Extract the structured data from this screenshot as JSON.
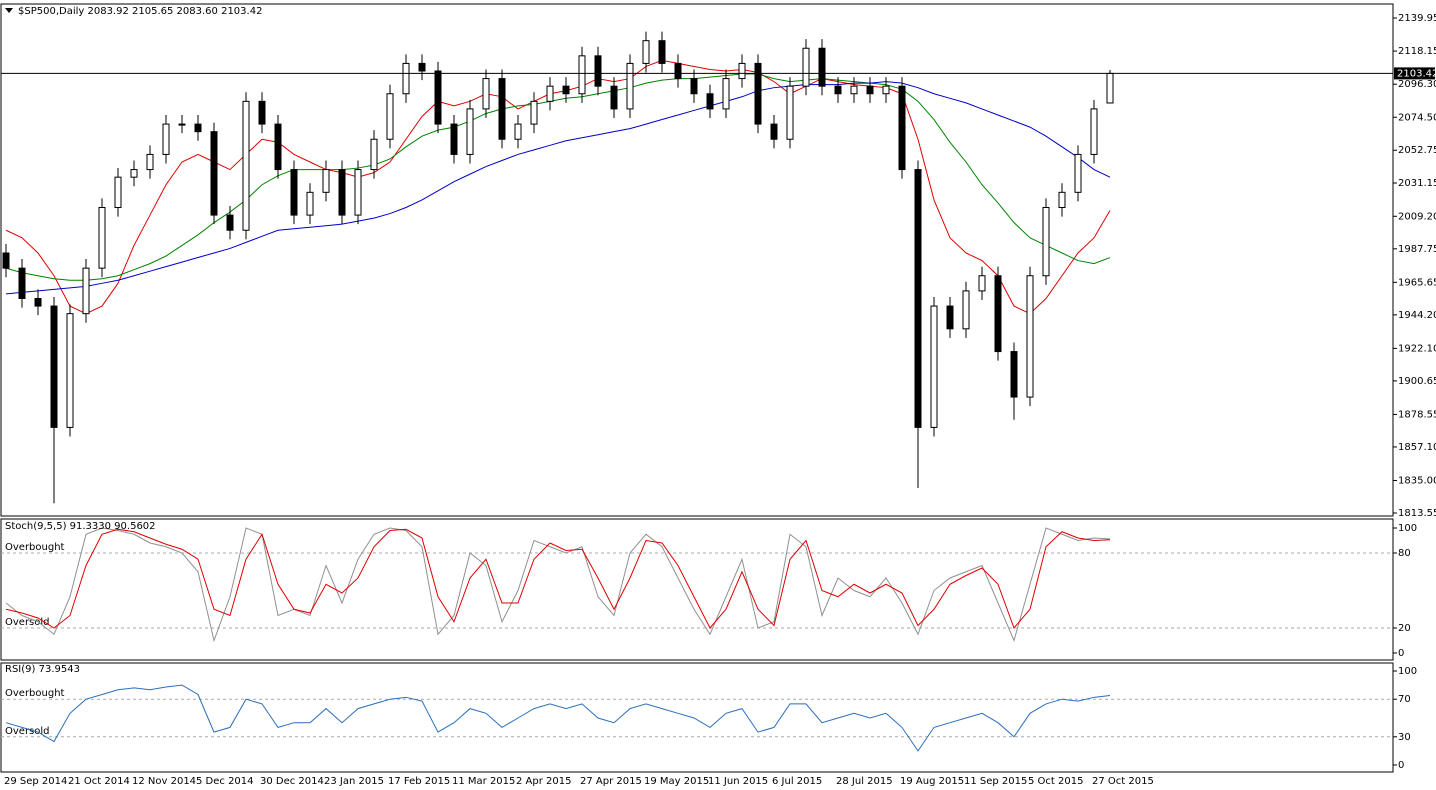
{
  "chart_data": {
    "type": "candlestick",
    "header": "$SP500,Daily  2083.92 2105.65 2083.60 2103.42",
    "categories": [
      "29 Sep 2014",
      null,
      null,
      null,
      "21 Oct 2014",
      null,
      null,
      null,
      "12 Nov 2014",
      null,
      null,
      null,
      "5 Dec 2014",
      null,
      null,
      null,
      "30 Dec 2014",
      null,
      null,
      null,
      "23 Jan 2015",
      null,
      null,
      null,
      "17 Feb 2015",
      null,
      null,
      null,
      "11 Mar 2015",
      null,
      null,
      null,
      "2 Apr 2015",
      null,
      null,
      null,
      "27 Apr 2015",
      null,
      null,
      null,
      "19 May 2015",
      null,
      null,
      null,
      "11 Jun 2015",
      null,
      null,
      null,
      "6 Jul 2015",
      null,
      null,
      null,
      "28 Jul 2015",
      null,
      null,
      null,
      "19 Aug 2015",
      null,
      null,
      null,
      "11 Sep 2015",
      null,
      null,
      null,
      "5 Oct 2015",
      null,
      null,
      null,
      "27 Oct 2015",
      null
    ],
    "open": [
      1985,
      1975,
      1955,
      1950,
      1870,
      1945,
      1975,
      2015,
      2035,
      2040,
      2050,
      2070,
      2070,
      2065,
      2010,
      2000,
      2085,
      2070,
      2040,
      2010,
      2025,
      2040,
      2010,
      2040,
      2060,
      2090,
      2110,
      2105,
      2070,
      2050,
      2080,
      2100,
      2060,
      2070,
      2085,
      2095,
      2090,
      2115,
      2095,
      2080,
      2110,
      2125,
      2110,
      2100,
      2090,
      2080,
      2100,
      2110,
      2070,
      2060,
      2095,
      2120,
      2095,
      2090,
      2095,
      2090,
      2095,
      2040,
      1870,
      1950,
      1935,
      1960,
      1970,
      1920,
      1890,
      1970,
      2015,
      2025,
      2050,
      2083.92
    ],
    "high": [
      1991,
      1981,
      1961,
      1956,
      1951,
      1981,
      2021,
      2041,
      2046,
      2056,
      2076,
      2076,
      2076,
      2071,
      2016,
      2091,
      2091,
      2076,
      2046,
      2031,
      2046,
      2046,
      2046,
      2066,
      2096,
      2116,
      2116,
      2111,
      2076,
      2086,
      2106,
      2106,
      2076,
      2091,
      2101,
      2101,
      2121,
      2121,
      2101,
      2116,
      2131,
      2131,
      2116,
      2106,
      2096,
      2106,
      2116,
      2116,
      2076,
      2101,
      2126,
      2126,
      2101,
      2101,
      2101,
      2101,
      2101,
      2046,
      1956,
      1956,
      1966,
      1976,
      1976,
      1926,
      1976,
      2021,
      2031,
      2056,
      2086,
      2105.65
    ],
    "low": [
      1969,
      1949,
      1944,
      1820,
      1864,
      1939,
      1969,
      2009,
      2029,
      2034,
      2044,
      2064,
      2059,
      2004,
      1994,
      1994,
      2064,
      2034,
      2004,
      2004,
      2019,
      2004,
      2004,
      2034,
      2054,
      2084,
      2099,
      2064,
      2044,
      2044,
      2074,
      2054,
      2054,
      2064,
      2079,
      2084,
      2084,
      2089,
      2074,
      2074,
      2104,
      2104,
      2094,
      2084,
      2074,
      2074,
      2094,
      2064,
      2054,
      2054,
      2089,
      2089,
      2084,
      2084,
      2084,
      2084,
      2034,
      1830,
      1864,
      1929,
      1929,
      1954,
      1914,
      1875,
      1884,
      1964,
      2009,
      2019,
      2044,
      2083.6
    ],
    "close": [
      1975,
      1955,
      1950,
      1870,
      1945,
      1975,
      2015,
      2035,
      2040,
      2050,
      2070,
      2070,
      2065,
      2010,
      2000,
      2085,
      2070,
      2040,
      2010,
      2025,
      2040,
      2010,
      2040,
      2060,
      2090,
      2110,
      2105,
      2070,
      2050,
      2080,
      2100,
      2060,
      2070,
      2085,
      2095,
      2090,
      2115,
      2095,
      2080,
      2110,
      2125,
      2110,
      2100,
      2090,
      2080,
      2100,
      2110,
      2070,
      2060,
      2095,
      2120,
      2095,
      2090,
      2095,
      2090,
      2095,
      2040,
      1870,
      1950,
      1935,
      1960,
      1970,
      1920,
      1890,
      1970,
      2015,
      2025,
      2050,
      2080,
      2103.42
    ],
    "last_price_label": "2103.42",
    "moving_averages": [
      {
        "color": "#e00000",
        "values": [
          2000,
          1995,
          1985,
          1970,
          1950,
          1945,
          1950,
          1965,
          1990,
          2010,
          2030,
          2045,
          2050,
          2045,
          2040,
          2050,
          2060,
          2058,
          2050,
          2045,
          2040,
          2038,
          2035,
          2038,
          2045,
          2060,
          2075,
          2085,
          2082,
          2085,
          2090,
          2088,
          2080,
          2085,
          2090,
          2092,
          2095,
          2100,
          2098,
          2100,
          2108,
          2112,
          2110,
          2108,
          2106,
          2105,
          2106,
          2104,
          2098,
          2090,
          2095,
          2100,
          2098,
          2096,
          2095,
          2094,
          2090,
          2060,
          2020,
          1995,
          1985,
          1980,
          1970,
          1950,
          1945,
          1955,
          1970,
          1985,
          1995,
          2013
        ]
      },
      {
        "color": "#008000",
        "values": [
          1975,
          1972,
          1970,
          1968,
          1967,
          1967,
          1968,
          1970,
          1974,
          1978,
          1983,
          1990,
          1997,
          2005,
          2012,
          2020,
          2030,
          2036,
          2040,
          2040,
          2040,
          2040,
          2041,
          2043,
          2047,
          2055,
          2062,
          2066,
          2068,
          2072,
          2077,
          2080,
          2082,
          2083,
          2085,
          2087,
          2088,
          2090,
          2092,
          2094,
          2097,
          2099,
          2100,
          2100,
          2101,
          2102,
          2103,
          2103,
          2100,
          2098,
          2099,
          2100,
          2099,
          2098,
          2097,
          2096,
          2093,
          2085,
          2073,
          2058,
          2045,
          2030,
          2018,
          2005,
          1995,
          1990,
          1985,
          1980,
          1978,
          1982
        ]
      },
      {
        "color": "#0000c8",
        "values": [
          1958,
          1959,
          1960,
          1961,
          1962,
          1963,
          1965,
          1967,
          1970,
          1973,
          1976,
          1979,
          1982,
          1985,
          1988,
          1992,
          1996,
          2000,
          2001,
          2002,
          2003,
          2004,
          2006,
          2008,
          2011,
          2015,
          2020,
          2026,
          2032,
          2037,
          2042,
          2046,
          2050,
          2053,
          2056,
          2059,
          2061,
          2063,
          2065,
          2067,
          2070,
          2073,
          2076,
          2079,
          2082,
          2085,
          2088,
          2092,
          2094,
          2095,
          2096,
          2096,
          2096,
          2097,
          2097,
          2098,
          2097,
          2094,
          2090,
          2087,
          2084,
          2080,
          2076,
          2072,
          2068,
          2062,
          2055,
          2048,
          2040,
          2035
        ]
      }
    ],
    "ylim": [
      1813.55,
      2139.95
    ],
    "yticks": [
      2139.95,
      2118.15,
      {
        "value": 2096.3,
        "label": "2096.30"
      },
      {
        "value": 2074.5,
        "label": "2074.50"
      },
      2052.75,
      2031.15,
      {
        "value": 2009.2,
        "label": "2009.20"
      },
      1987.75,
      1965.65,
      {
        "value": 1944.2,
        "label": "1944.20"
      },
      {
        "value": 1922.1,
        "label": "1922.10"
      },
      1900.65,
      1878.55,
      {
        "value": 1857.1,
        "label": "1857.10"
      },
      {
        "value": 1835,
        "label": "1835.00"
      },
      1813.55
    ],
    "indicators": [
      {
        "type": "stochastic",
        "label": "Stoch(9,5,5) 91.3330 90.5602",
        "ylim": [
          0,
          100
        ],
        "yticks": [
          0,
          20,
          80,
          100
        ],
        "levels": [
          80,
          20
        ],
        "level_labels": [
          "Overbought",
          "Oversold"
        ],
        "series": [
          {
            "color": "#909090",
            "values": [
              40,
              30,
              25,
              15,
              45,
              95,
              100,
              98,
              95,
              88,
              85,
              80,
              65,
              10,
              45,
              100,
              95,
              30,
              35,
              30,
              70,
              40,
              75,
              95,
              100,
              98,
              85,
              15,
              30,
              80,
              70,
              25,
              50,
              90,
              85,
              80,
              85,
              45,
              30,
              80,
              95,
              85,
              60,
              35,
              15,
              45,
              75,
              20,
              25,
              95,
              85,
              30,
              60,
              50,
              45,
              60,
              40,
              15,
              50,
              60,
              65,
              70,
              40,
              10,
              55,
              100,
              95,
              90,
              92,
              91.333
            ]
          },
          {
            "color": "#e00000",
            "values": [
              35,
              32,
              28,
              20,
              30,
              70,
              95,
              99,
              97,
              92,
              87,
              83,
              75,
              35,
              30,
              75,
              95,
              55,
              35,
              32,
              55,
              48,
              60,
              85,
              98,
              99,
              92,
              45,
              25,
              60,
              75,
              40,
              40,
              75,
              88,
              82,
              83,
              60,
              35,
              60,
              90,
              88,
              70,
              45,
              20,
              35,
              65,
              35,
              22,
              75,
              90,
              50,
              45,
              55,
              48,
              55,
              48,
              22,
              35,
              55,
              62,
              68,
              55,
              20,
              35,
              85,
              97,
              92,
              90,
              90.5602
            ]
          }
        ]
      },
      {
        "type": "rsi",
        "label": "RSI(9) 73.9543",
        "ylim": [
          0,
          100
        ],
        "yticks": [
          0,
          30,
          70,
          100
        ],
        "levels": [
          70,
          30
        ],
        "level_labels": [
          "Overbought",
          "Oversold"
        ],
        "series": [
          {
            "color": "#2a6ebb",
            "values": [
              45,
              40,
              35,
              25,
              55,
              70,
              75,
              80,
              82,
              80,
              83,
              85,
              75,
              35,
              40,
              70,
              65,
              40,
              45,
              45,
              60,
              45,
              60,
              65,
              70,
              72,
              68,
              35,
              45,
              60,
              55,
              40,
              50,
              60,
              65,
              60,
              65,
              50,
              45,
              60,
              65,
              60,
              55,
              50,
              40,
              55,
              60,
              35,
              40,
              65,
              65,
              45,
              50,
              55,
              50,
              55,
              40,
              15,
              40,
              45,
              50,
              55,
              45,
              30,
              55,
              65,
              70,
              68,
              72,
              73.9543
            ]
          }
        ]
      }
    ]
  }
}
